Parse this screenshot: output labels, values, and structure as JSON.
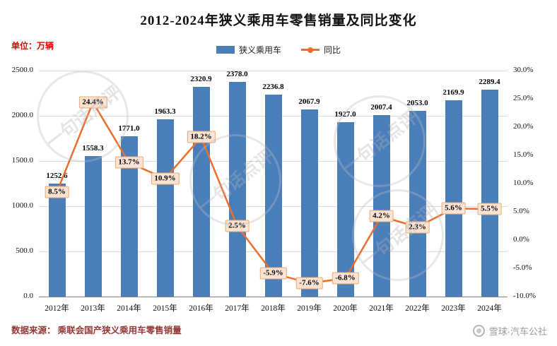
{
  "title": "2012-2024年狭义乘用车零售销量及同比变化",
  "unit_label": "单位：万辆",
  "legend": {
    "bar_label": "狭义乘用车",
    "line_label": "同比"
  },
  "footer": {
    "source": "数据来源： 乘联会国产狭义乘用车零售销量",
    "attribution": "雪球·汽车公社"
  },
  "watermark": {
    "text": "一句话点评"
  },
  "colors": {
    "bar": "#4a7ebb",
    "line": "#ed6d2d",
    "box_bg": "#fbe3d3",
    "box_border": "#eda972"
  },
  "chart_data": {
    "type": "bar",
    "combo": "bar+line",
    "title": "2012-2024年狭义乘用车零售销量及同比变化",
    "categories": [
      "2012年",
      "2013年",
      "2014年",
      "2015年",
      "2016年",
      "2017年",
      "2018年",
      "2019年",
      "2020年",
      "2021年",
      "2022年",
      "2023年",
      "2024年"
    ],
    "series": [
      {
        "name": "狭义乘用车",
        "type": "bar",
        "axis": "left",
        "values": [
          1252.6,
          1558.3,
          1771.0,
          1963.3,
          2320.9,
          2378.0,
          2236.8,
          2067.9,
          1927.0,
          2007.4,
          2053.0,
          2169.9,
          2289.4
        ],
        "labels": [
          "1252.6",
          "1558.3",
          "1771.0",
          "1963.3",
          "2320.9",
          "2378.0",
          "2236.8",
          "2067.9",
          "1927.0",
          "2007.4",
          "2053.0",
          "2169.9",
          "2289.4"
        ]
      },
      {
        "name": "同比",
        "type": "line",
        "axis": "right",
        "values": [
          8.5,
          24.4,
          13.7,
          10.9,
          18.2,
          2.5,
          -5.9,
          -7.6,
          -6.8,
          4.2,
          2.3,
          5.6,
          5.5
        ],
        "labels": [
          "8.5%",
          "24.4%",
          "13.7%",
          "10.9%",
          "18.2%",
          "2.5%",
          "-5.9%",
          "-7.6%",
          "-6.8%",
          "4.2%",
          "2.3%",
          "5.6%",
          "5.5%"
        ]
      }
    ],
    "left_axis": {
      "min": 0,
      "max": 2500,
      "ticks": [
        "0.0",
        "500.0",
        "1000.0",
        "1500.0",
        "2000.0",
        "2500.0"
      ],
      "label": "万辆"
    },
    "right_axis": {
      "min": -10,
      "max": 30,
      "ticks": [
        "-10.0%",
        "-5.0%",
        "0.0%",
        "5.0%",
        "10.0%",
        "15.0%",
        "20.0%",
        "25.0%",
        "30.0%"
      ],
      "label": "同比"
    },
    "grid": true,
    "legend_position": "top-center"
  }
}
